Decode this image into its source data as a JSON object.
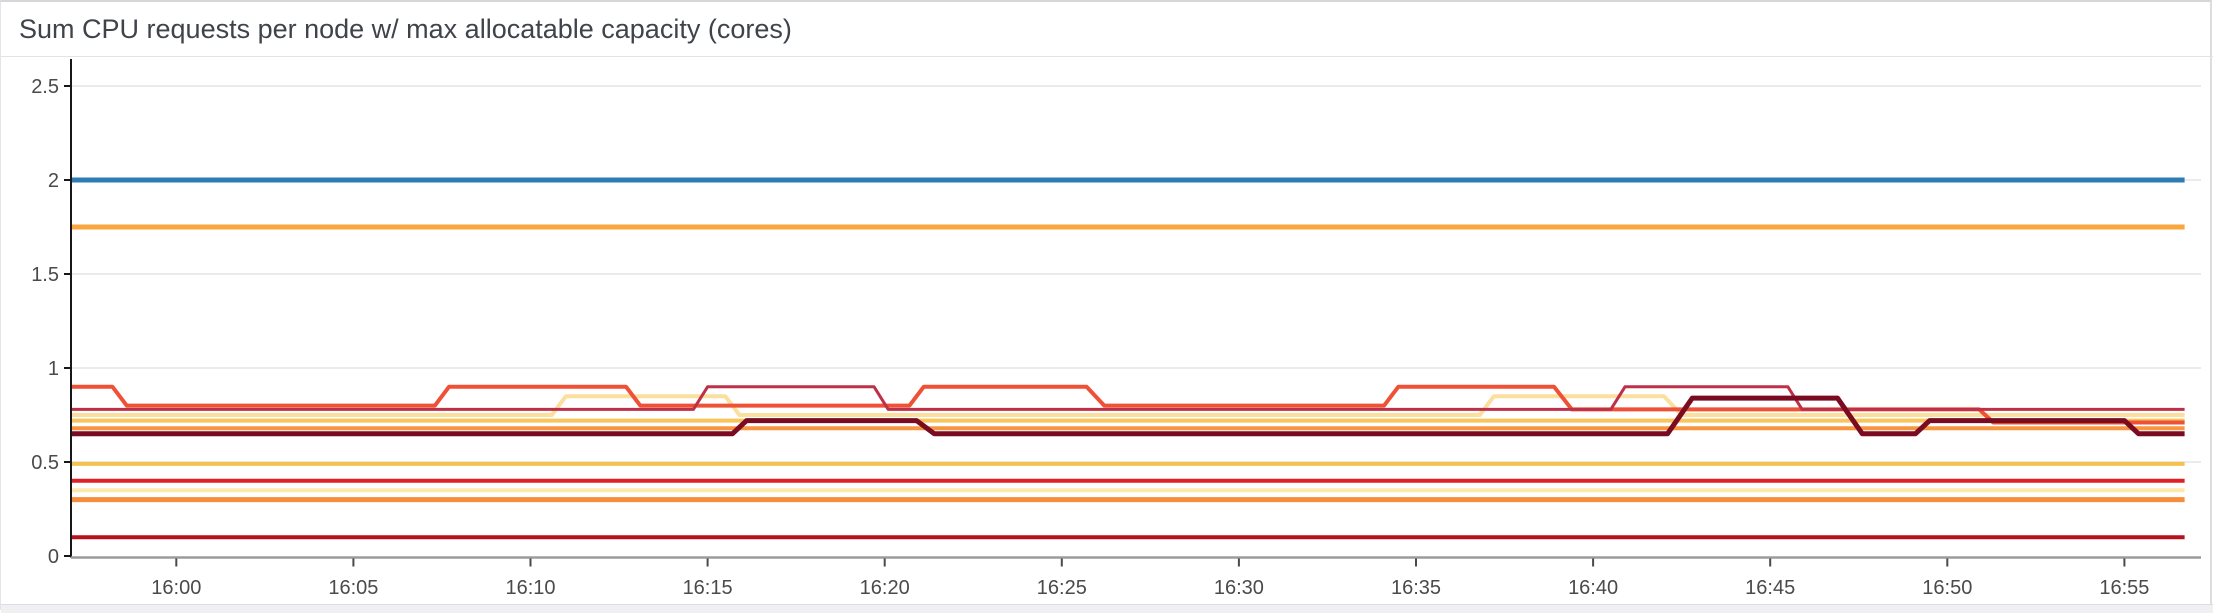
{
  "panel": {
    "title": "Sum CPU requests per node w/ max allocatable capacity (cores)"
  },
  "chart_data": {
    "type": "line",
    "title": "Sum CPU requests per node w/ max allocatable capacity (cores)",
    "legend": false,
    "grid": true,
    "grid_color": "#ebebee",
    "y_axis_color": "#17171a",
    "x_axis_color": "#9b9b9b",
    "tick_label_color": "#4a4a4a",
    "x_axis": {
      "unit": "time",
      "labels": [
        "16:00",
        "16:05",
        "16:10",
        "16:15",
        "16:20",
        "16:25",
        "16:30",
        "16:35",
        "16:40",
        "16:45",
        "16:50",
        "16:55"
      ],
      "tick_interval_minutes": 5,
      "visible_range": [
        "15:57",
        "16:57"
      ]
    },
    "y_axis": {
      "unit": "cores",
      "ticks": [
        {
          "v": 0,
          "label": "0"
        },
        {
          "v": 0.5,
          "label": "0.5"
        },
        {
          "v": 1,
          "label": "1"
        },
        {
          "v": 1.5,
          "label": "1.5"
        },
        {
          "v": 2,
          "label": "2"
        },
        {
          "v": 2.5,
          "label": "2.5"
        }
      ],
      "range": [
        0,
        2.64
      ]
    },
    "series_note": "points are [minutes_after_16:00, cores]; stepped lines with short ramps",
    "series": [
      {
        "id": "s1-blue-2.0",
        "color": "#2d7cb4",
        "width": 5,
        "points": [
          [
            -3,
            2.0
          ],
          [
            56.7,
            2.0
          ]
        ]
      },
      {
        "id": "s2-amber-1.75",
        "color": "#f9a63f",
        "width": 5,
        "points": [
          [
            -3,
            1.75
          ],
          [
            56.7,
            1.75
          ]
        ]
      },
      {
        "id": "s6-golden-0.72",
        "color": "#f9c45c",
        "width": 4,
        "points": [
          [
            -3,
            0.72
          ],
          [
            56.7,
            0.72
          ]
        ]
      },
      {
        "id": "s7-orange-0.68",
        "color": "#f89540",
        "width": 4,
        "points": [
          [
            -3,
            0.68
          ],
          [
            56.7,
            0.68
          ]
        ]
      },
      {
        "id": "s9-gold-0.5",
        "color": "#f2c14e",
        "width": 4,
        "points": [
          [
            -3,
            0.49
          ],
          [
            56.7,
            0.49
          ]
        ]
      },
      {
        "id": "s10-red-0.4",
        "color": "#dc2127",
        "width": 4,
        "points": [
          [
            -3,
            0.4
          ],
          [
            56.7,
            0.4
          ]
        ]
      },
      {
        "id": "s11-cream-0.35",
        "color": "#fce9ac",
        "width": 4,
        "points": [
          [
            -3,
            0.35
          ],
          [
            56.7,
            0.35
          ]
        ]
      },
      {
        "id": "s12-orange-0.3",
        "color": "#f68d3b",
        "width": 5,
        "points": [
          [
            -3,
            0.3
          ],
          [
            56.7,
            0.3
          ]
        ]
      },
      {
        "id": "s13-darkred-0.1",
        "color": "#b5111f",
        "width": 4,
        "points": [
          [
            -3,
            0.1
          ],
          [
            56.7,
            0.1
          ]
        ]
      },
      {
        "id": "s5-cream-steps",
        "color": "#fbdf9f",
        "width": 4,
        "points": [
          [
            -3,
            0.75
          ],
          [
            10.6,
            0.75
          ],
          [
            11.0,
            0.85
          ],
          [
            15.5,
            0.85
          ],
          [
            15.9,
            0.75
          ],
          [
            36.8,
            0.75
          ],
          [
            37.2,
            0.85
          ],
          [
            42.0,
            0.85
          ],
          [
            42.5,
            0.75
          ],
          [
            56.7,
            0.75
          ]
        ]
      },
      {
        "id": "s3-vermilion-steps",
        "color": "#ef5136",
        "width": 4,
        "points": [
          [
            -3,
            0.9
          ],
          [
            -1.8,
            0.9
          ],
          [
            -1.4,
            0.8
          ],
          [
            7.3,
            0.8
          ],
          [
            7.7,
            0.9
          ],
          [
            12.7,
            0.9
          ],
          [
            13.1,
            0.8
          ],
          [
            20.7,
            0.8
          ],
          [
            21.1,
            0.9
          ],
          [
            25.7,
            0.9
          ],
          [
            26.2,
            0.8
          ],
          [
            34.1,
            0.8
          ],
          [
            34.5,
            0.9
          ],
          [
            38.9,
            0.9
          ],
          [
            39.4,
            0.78
          ],
          [
            50.9,
            0.78
          ],
          [
            51.3,
            0.71
          ],
          [
            56.7,
            0.71
          ]
        ]
      },
      {
        "id": "s4-crimson-steps",
        "color": "#bd3148",
        "width": 3,
        "points": [
          [
            -3,
            0.78
          ],
          [
            14.6,
            0.78
          ],
          [
            15.0,
            0.9
          ],
          [
            19.7,
            0.9
          ],
          [
            20.1,
            0.78
          ],
          [
            40.5,
            0.78
          ],
          [
            40.9,
            0.9
          ],
          [
            45.5,
            0.9
          ],
          [
            45.9,
            0.78
          ],
          [
            56.7,
            0.78
          ]
        ]
      },
      {
        "id": "s8-maroon-steps",
        "color": "#7a0c22",
        "width": 5,
        "points": [
          [
            -3,
            0.65
          ],
          [
            15.7,
            0.65
          ],
          [
            16.1,
            0.72
          ],
          [
            20.9,
            0.72
          ],
          [
            21.4,
            0.65
          ],
          [
            42.1,
            0.65
          ],
          [
            42.8,
            0.84
          ],
          [
            46.9,
            0.84
          ],
          [
            47.6,
            0.65
          ],
          [
            49.1,
            0.65
          ],
          [
            49.5,
            0.72
          ],
          [
            55.0,
            0.72
          ],
          [
            55.4,
            0.65
          ],
          [
            56.7,
            0.65
          ]
        ]
      }
    ]
  }
}
